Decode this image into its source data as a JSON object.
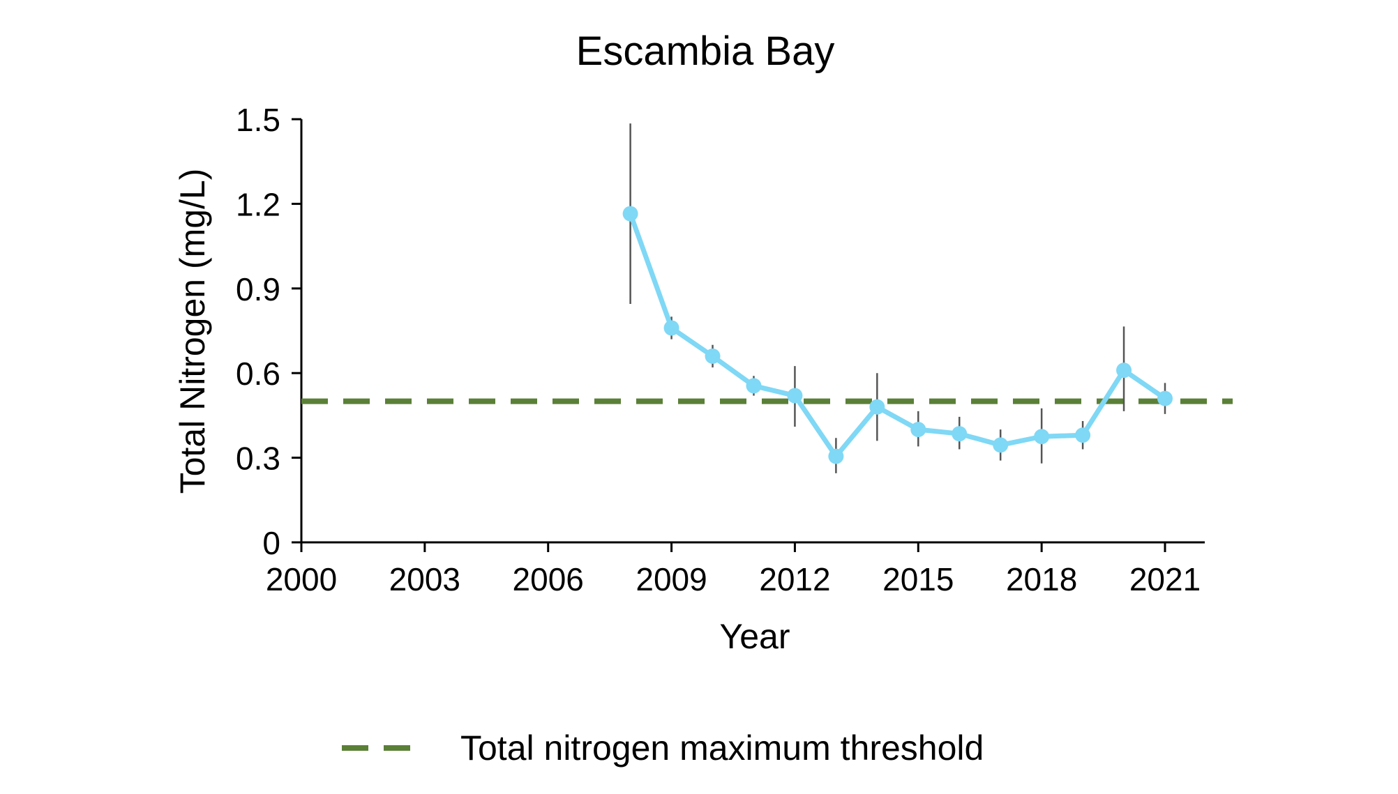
{
  "chart_data": {
    "type": "line",
    "title": "Escambia Bay",
    "xlabel": "Year",
    "ylabel": "Total Nitrogen (mg/L)",
    "xlim": [
      2000,
      2022
    ],
    "ylim": [
      0,
      1.5
    ],
    "xticks": [
      2000,
      2003,
      2006,
      2009,
      2012,
      2015,
      2018,
      2021
    ],
    "xtick_labels": [
      "2000",
      "2003",
      "2006",
      "2009",
      "2012",
      "2015",
      "2018",
      "2021"
    ],
    "yticks": [
      0,
      0.3,
      0.6,
      0.9,
      1.2,
      1.5
    ],
    "ytick_labels": [
      "0",
      "0.3",
      "0.6",
      "0.9",
      "1.2",
      "1.5"
    ],
    "grid": false,
    "legend_position": "bottom",
    "series": [
      {
        "color": "#7fd8f5",
        "x": [
          2008,
          2009,
          2010,
          2011,
          2012,
          2013,
          2014,
          2015,
          2016,
          2017,
          2018,
          2019,
          2020,
          2021
        ],
        "y": [
          1.165,
          0.76,
          0.66,
          0.555,
          0.52,
          0.305,
          0.48,
          0.4,
          0.385,
          0.345,
          0.375,
          0.38,
          0.61,
          0.51
        ],
        "error_low": [
          0.845,
          0.72,
          0.62,
          0.52,
          0.41,
          0.245,
          0.36,
          0.34,
          0.33,
          0.29,
          0.28,
          0.33,
          0.465,
          0.455
        ],
        "error_high": [
          1.485,
          0.8,
          0.7,
          0.59,
          0.625,
          0.37,
          0.6,
          0.465,
          0.445,
          0.4,
          0.475,
          0.43,
          0.765,
          0.565
        ],
        "error_color": "#555555"
      }
    ],
    "reference_lines": [
      {
        "name": "Total nitrogen maximum threshold",
        "y": 0.5,
        "style": "dashed",
        "color": "#5a8037"
      }
    ],
    "legend": [
      {
        "label": "Total nitrogen maximum threshold",
        "style": "dashed",
        "color": "#5a8037"
      }
    ]
  }
}
